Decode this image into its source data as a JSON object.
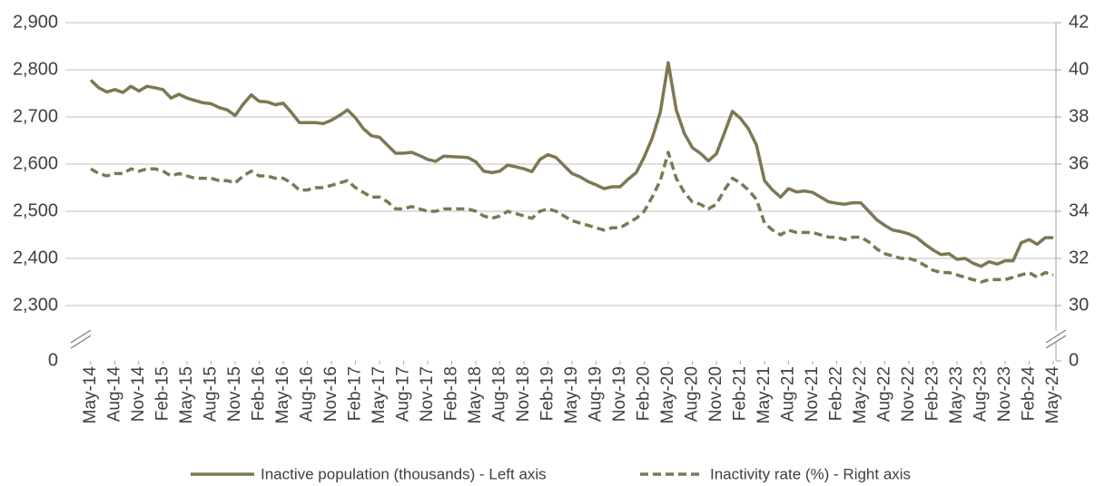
{
  "chart_data": {
    "type": "line",
    "categories": [
      "May-14",
      null,
      null,
      "Aug-14",
      null,
      null,
      "Nov-14",
      null,
      null,
      "Feb-15",
      null,
      null,
      "May-15",
      null,
      null,
      "Aug-15",
      null,
      null,
      "Nov-15",
      null,
      null,
      "Feb-16",
      null,
      null,
      "May-16",
      null,
      null,
      "Aug-16",
      null,
      null,
      "Nov-16",
      null,
      null,
      "Feb-17",
      null,
      null,
      "May-17",
      null,
      null,
      "Aug-17",
      null,
      null,
      "Nov-17",
      null,
      null,
      "Feb-18",
      null,
      null,
      "May-18",
      null,
      null,
      "Aug-18",
      null,
      null,
      "Nov-18",
      null,
      null,
      "Feb-19",
      null,
      null,
      "May-19",
      null,
      null,
      "Aug-19",
      null,
      null,
      "Nov-19",
      null,
      null,
      "Feb-20",
      null,
      null,
      "May-20",
      null,
      null,
      "Aug-20",
      null,
      null,
      "Nov-20",
      null,
      null,
      "Feb-21",
      null,
      null,
      "May-21",
      null,
      null,
      "Aug-21",
      null,
      null,
      "Nov-21",
      null,
      null,
      "Feb-22",
      null,
      null,
      "May-22",
      null,
      null,
      "Aug-22",
      null,
      null,
      "Nov-22",
      null,
      null,
      "Feb-23",
      null,
      null,
      "May-23",
      null,
      null,
      "Aug-23",
      null,
      null,
      "Nov-23",
      null,
      null,
      "Feb-24",
      null,
      null,
      "May-24"
    ],
    "series": [
      {
        "name": "Inactive population (thousands) - Left axis",
        "color": "#7d7754",
        "line_style": "solid",
        "values": [
          2778,
          2762,
          2753,
          2758,
          2752,
          2765,
          2755,
          2765,
          2762,
          2758,
          2740,
          2748,
          2740,
          2735,
          2730,
          2728,
          2720,
          2715,
          2703,
          2727,
          2747,
          2733,
          2732,
          2726,
          2729,
          2710,
          2688,
          2688,
          2688,
          2686,
          2693,
          2703,
          2715,
          2698,
          2675,
          2660,
          2657,
          2640,
          2623,
          2623,
          2625,
          2618,
          2610,
          2606,
          2617,
          2616,
          2615,
          2614,
          2605,
          2585,
          2582,
          2585,
          2598,
          2594,
          2590,
          2584,
          2610,
          2620,
          2614,
          2597,
          2580,
          2573,
          2563,
          2556,
          2548,
          2552,
          2552,
          2568,
          2582,
          2615,
          2655,
          2710,
          2815,
          2715,
          2665,
          2635,
          2623,
          2607,
          2622,
          2666,
          2712,
          2697,
          2675,
          2640,
          2565,
          2545,
          2530,
          2548,
          2541,
          2543,
          2540,
          2530,
          2520,
          2517,
          2515,
          2518,
          2518,
          2500,
          2482,
          2470,
          2460,
          2457,
          2452,
          2444,
          2430,
          2418,
          2408,
          2410,
          2398,
          2400,
          2390,
          2383,
          2393,
          2388,
          2395,
          2395,
          2433,
          2440,
          2430,
          2444,
          2444
        ]
      },
      {
        "name": "Inactivity rate (%) - Right axis",
        "color": "#7d7754",
        "line_style": "dashed",
        "axis": "y2",
        "values": [
          35.8,
          35.6,
          35.5,
          35.6,
          35.6,
          35.8,
          35.7,
          35.8,
          35.8,
          35.7,
          35.5,
          35.6,
          35.5,
          35.4,
          35.4,
          35.4,
          35.3,
          35.3,
          35.2,
          35.5,
          35.7,
          35.5,
          35.5,
          35.4,
          35.4,
          35.2,
          34.9,
          34.9,
          35.0,
          35.0,
          35.1,
          35.2,
          35.3,
          35.0,
          34.8,
          34.6,
          34.6,
          34.4,
          34.1,
          34.1,
          34.2,
          34.1,
          34.0,
          34.0,
          34.1,
          34.1,
          34.1,
          34.1,
          34.0,
          33.8,
          33.7,
          33.8,
          34.0,
          33.9,
          33.8,
          33.7,
          34.0,
          34.1,
          34.0,
          33.8,
          33.6,
          33.5,
          33.4,
          33.3,
          33.2,
          33.3,
          33.3,
          33.5,
          33.7,
          34.0,
          34.6,
          35.3,
          36.5,
          35.4,
          34.8,
          34.4,
          34.3,
          34.1,
          34.3,
          34.9,
          35.4,
          35.2,
          34.9,
          34.5,
          33.5,
          33.2,
          33.0,
          33.2,
          33.1,
          33.1,
          33.1,
          33.0,
          32.9,
          32.9,
          32.8,
          32.9,
          32.9,
          32.7,
          32.4,
          32.2,
          32.1,
          32.0,
          32.0,
          31.9,
          31.7,
          31.5,
          31.4,
          31.4,
          31.3,
          31.2,
          31.1,
          31.0,
          31.1,
          31.1,
          31.1,
          31.2,
          31.3,
          31.4,
          31.2,
          31.4,
          31.3
        ]
      }
    ],
    "ylim": [
      2300,
      2900
    ],
    "yticks": [
      0,
      {
        "value": 2300,
        "label": "2,300"
      },
      {
        "value": 2400,
        "label": "2,400"
      },
      {
        "value": 2500,
        "label": "2,500"
      },
      {
        "value": 2600,
        "label": "2,600"
      },
      {
        "value": 2700,
        "label": "2,700"
      },
      {
        "value": 2800,
        "label": "2,800"
      },
      {
        "value": 2900,
        "label": "2,900"
      }
    ],
    "y2lim": [
      30,
      42
    ],
    "y2ticks": [
      0,
      30,
      32,
      34,
      36,
      38,
      40,
      42
    ],
    "axis_break": true,
    "grid": true,
    "legend": "bottom"
  }
}
